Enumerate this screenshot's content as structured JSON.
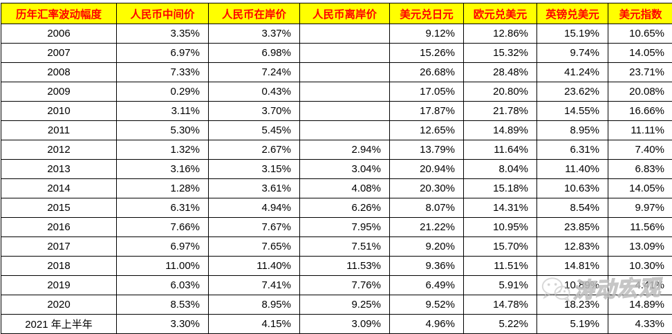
{
  "chart_data": {
    "type": "table",
    "title": "历年汇率波动幅度",
    "columns": [
      "历年汇率波动幅度",
      "人民币中间价",
      "人民币在岸价",
      "人民币离岸价",
      "美元兑日元",
      "欧元兑美元",
      "英镑兑美元",
      "美元指数"
    ],
    "rows": [
      {
        "year": "2006",
        "values": [
          "3.35%",
          "3.37%",
          "",
          "9.12%",
          "12.86%",
          "15.19%",
          "10.65%"
        ]
      },
      {
        "year": "2007",
        "values": [
          "6.97%",
          "6.98%",
          "",
          "15.26%",
          "15.32%",
          "9.74%",
          "14.05%"
        ]
      },
      {
        "year": "2008",
        "values": [
          "7.33%",
          "7.24%",
          "",
          "26.68%",
          "28.48%",
          "41.24%",
          "23.71%"
        ]
      },
      {
        "year": "2009",
        "values": [
          "0.29%",
          "0.43%",
          "",
          "17.05%",
          "20.80%",
          "23.62%",
          "20.08%"
        ]
      },
      {
        "year": "2010",
        "values": [
          "3.11%",
          "3.70%",
          "",
          "17.87%",
          "21.78%",
          "14.55%",
          "16.66%"
        ]
      },
      {
        "year": "2011",
        "values": [
          "5.30%",
          "5.45%",
          "",
          "12.65%",
          "14.89%",
          "8.95%",
          "11.11%"
        ]
      },
      {
        "year": "2012",
        "values": [
          "1.32%",
          "2.67%",
          "2.94%",
          "13.79%",
          "11.64%",
          "6.31%",
          "7.40%"
        ]
      },
      {
        "year": "2013",
        "values": [
          "3.16%",
          "3.15%",
          "3.04%",
          "20.94%",
          "8.04%",
          "11.40%",
          "6.83%"
        ]
      },
      {
        "year": "2014",
        "values": [
          "1.28%",
          "3.61%",
          "4.08%",
          "20.30%",
          "15.18%",
          "10.63%",
          "14.05%"
        ]
      },
      {
        "year": "2015",
        "values": [
          "6.31%",
          "4.94%",
          "6.26%",
          "8.07%",
          "14.31%",
          "8.54%",
          "9.97%"
        ]
      },
      {
        "year": "2016",
        "values": [
          "7.66%",
          "7.67%",
          "7.95%",
          "21.22%",
          "10.95%",
          "23.85%",
          "11.56%"
        ]
      },
      {
        "year": "2017",
        "values": [
          "6.97%",
          "7.65%",
          "7.51%",
          "9.20%",
          "15.70%",
          "12.83%",
          "13.09%"
        ]
      },
      {
        "year": "2018",
        "values": [
          "11.00%",
          "11.40%",
          "11.53%",
          "9.36%",
          "11.51%",
          "14.81%",
          "10.30%"
        ]
      },
      {
        "year": "2019",
        "values": [
          "6.03%",
          "7.41%",
          "7.76%",
          "6.49%",
          "5.91%",
          "10.89%",
          "4.41%"
        ]
      },
      {
        "year": "2020",
        "values": [
          "8.53%",
          "8.95%",
          "9.25%",
          "9.52%",
          "14.78%",
          "18.23%",
          "14.89%"
        ]
      },
      {
        "year": "2021 年上半年",
        "values": [
          "3.30%",
          "4.15%",
          "3.09%",
          "4.96%",
          "5.22%",
          "5.19%",
          "4.33%"
        ]
      }
    ]
  },
  "watermark": {
    "text": "涛动宏观"
  },
  "colors": {
    "header_bg": "#FFFF00",
    "header_text": "#FF0000",
    "border": "#000000",
    "body_text": "#000000",
    "watermark_gray": "#BDBDBD"
  }
}
